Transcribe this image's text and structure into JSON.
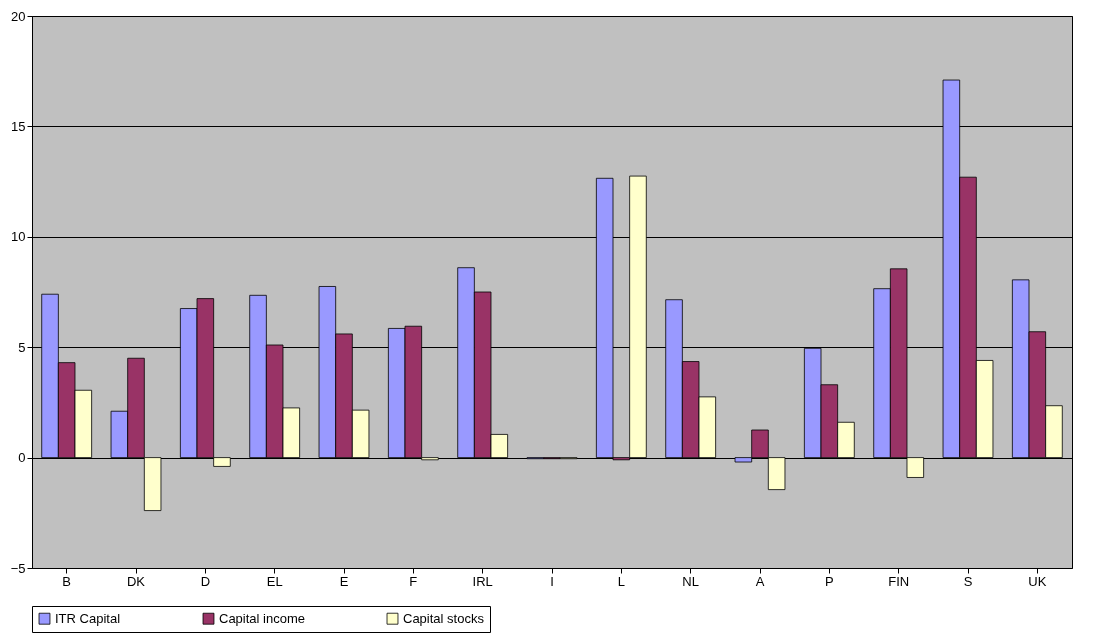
{
  "chart_data": {
    "type": "bar",
    "categories": [
      "B",
      "DK",
      "D",
      "EL",
      "E",
      "F",
      "IRL",
      "I",
      "L",
      "NL",
      "A",
      "P",
      "FIN",
      "S",
      "UK"
    ],
    "series": [
      {
        "name": "ITR Capital",
        "color": "#9999ff",
        "values": [
          7.4,
          2.1,
          6.75,
          7.35,
          7.75,
          5.85,
          8.6,
          -0.05,
          12.65,
          7.15,
          -0.2,
          4.95,
          7.65,
          17.1,
          8.05
        ]
      },
      {
        "name": "Capital income",
        "color": "#993366",
        "values": [
          4.3,
          4.5,
          7.2,
          5.1,
          5.6,
          5.95,
          7.5,
          -0.05,
          -0.1,
          4.35,
          1.25,
          3.3,
          8.55,
          12.7,
          5.7
        ]
      },
      {
        "name": "Capital stocks",
        "color": "#ffffcc",
        "values": [
          3.05,
          -2.4,
          -0.4,
          2.25,
          2.15,
          -0.1,
          1.05,
          -0.05,
          12.75,
          2.75,
          -1.45,
          1.6,
          -0.9,
          4.4,
          2.35
        ]
      }
    ],
    "ylim": [
      -5,
      20
    ],
    "yticks": [
      -5,
      0,
      5,
      10,
      15,
      20
    ],
    "grid": "y",
    "legend": "bottom"
  }
}
